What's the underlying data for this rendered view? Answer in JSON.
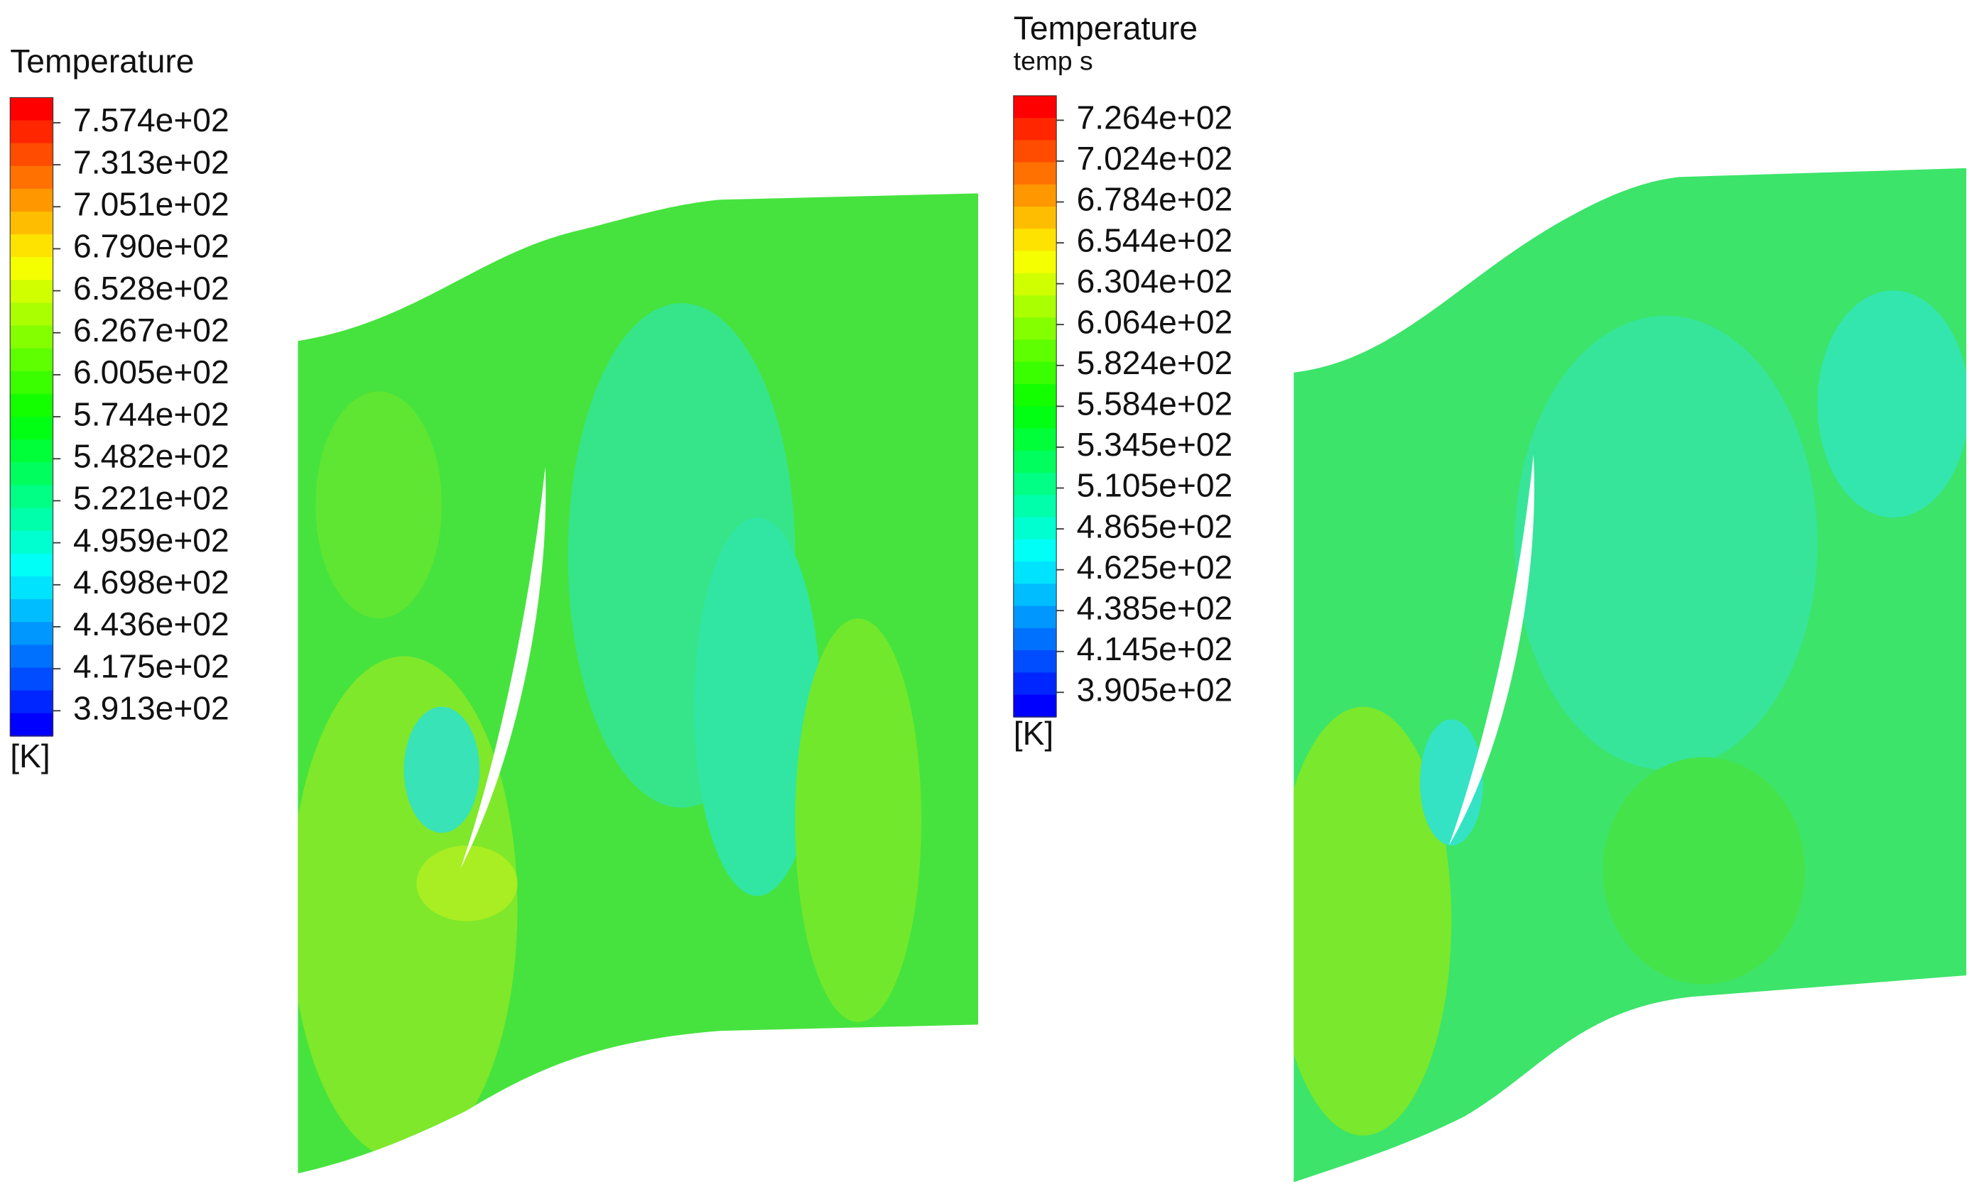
{
  "left_panel": {
    "legend": {
      "title": "Temperature",
      "labels": [
        "7.574e+02",
        "7.313e+02",
        "7.051e+02",
        "6.790e+02",
        "6.528e+02",
        "6.267e+02",
        "6.005e+02",
        "5.744e+02",
        "5.482e+02",
        "5.221e+02",
        "4.959e+02",
        "4.698e+02",
        "4.436e+02",
        "4.175e+02",
        "3.913e+02"
      ],
      "unit": "[K]"
    }
  },
  "right_panel": {
    "legend": {
      "title": "Temperature",
      "subtitle": "temp s",
      "labels": [
        "7.264e+02",
        "7.024e+02",
        "6.784e+02",
        "6.544e+02",
        "6.304e+02",
        "6.064e+02",
        "5.824e+02",
        "5.584e+02",
        "5.345e+02",
        "5.105e+02",
        "4.865e+02",
        "4.625e+02",
        "4.385e+02",
        "4.145e+02",
        "3.905e+02"
      ],
      "unit": "[K]"
    }
  }
}
